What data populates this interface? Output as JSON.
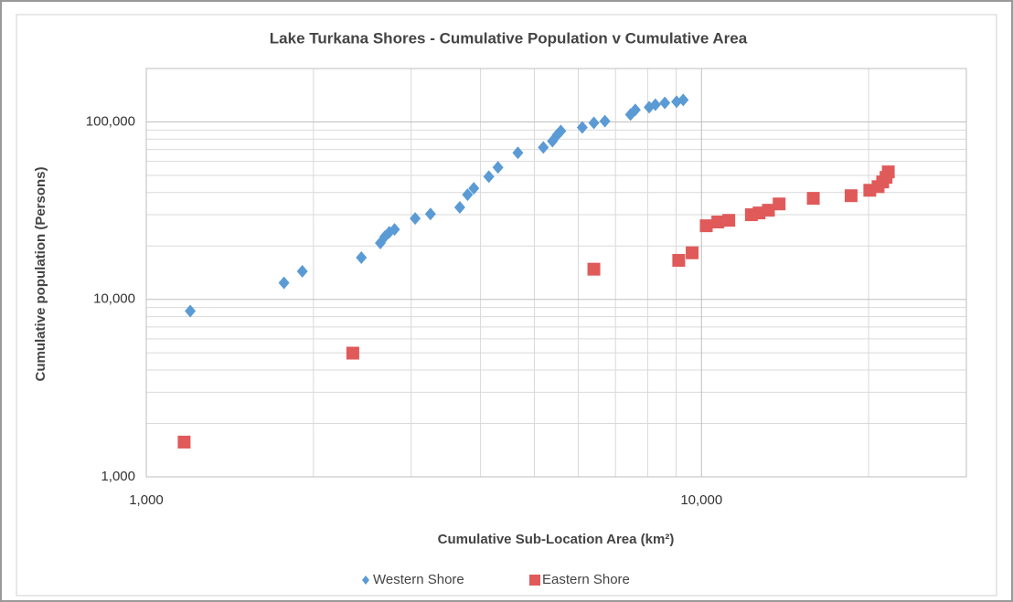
{
  "chart_data": {
    "type": "scatter",
    "title": "Lake Turkana Shores - Cumulative Population v Cumulative Area",
    "x_label": "Cumulative Sub-Location Area (km²)",
    "y_label": "Cumulative population (Persons)",
    "xlog": true,
    "ylog": true,
    "grid": true,
    "legend": "bottom",
    "xlim": [
      1000,
      30000
    ],
    "ylim": [
      1000,
      200000
    ],
    "xticks": [
      {
        "value": 1000,
        "label": "1,000"
      },
      {
        "value": 10000,
        "label": "10,000"
      }
    ],
    "yticks": [
      {
        "value": 1000,
        "label": "1,000"
      },
      {
        "value": 10000,
        "label": "10,000"
      },
      {
        "value": 100000,
        "label": "100,000"
      }
    ],
    "xminor": [
      2000,
      3000,
      4000,
      5000,
      6000,
      7000,
      8000,
      9000,
      20000
    ],
    "yminor": [
      2000,
      3000,
      4000,
      5000,
      6000,
      7000,
      8000,
      9000,
      20000,
      30000,
      40000,
      50000,
      60000,
      70000,
      80000,
      90000
    ],
    "series": [
      {
        "name": "Western Shore",
        "color": "#5b9bd5",
        "marker": "diamond",
        "x": [
          1200,
          1770,
          1910,
          2440,
          2640,
          2690,
          2740,
          2800,
          3050,
          3250,
          3670,
          3790,
          3890,
          4140,
          4300,
          4670,
          5190,
          5390,
          5500,
          5580,
          6100,
          6400,
          6700,
          7450,
          7600,
          8050,
          8260,
          8590,
          9020,
          9270
        ],
        "values": [
          8600,
          12400,
          14400,
          17200,
          20800,
          22600,
          23900,
          24800,
          28600,
          30300,
          33000,
          38900,
          42300,
          49200,
          55400,
          67000,
          71800,
          78000,
          84700,
          88900,
          93100,
          98800,
          101000,
          110000,
          117000,
          121000,
          125000,
          128000,
          130000,
          133000
        ]
      },
      {
        "name": "Eastern Shore",
        "color": "#e05a5a",
        "marker": "square",
        "x": [
          1170,
          2355,
          6400,
          9100,
          9620,
          10200,
          10700,
          11200,
          12300,
          12700,
          13200,
          13800,
          15900,
          18600,
          20100,
          20800,
          21200,
          21500,
          21700
        ],
        "values": [
          1570,
          4980,
          14800,
          16600,
          18300,
          26000,
          27300,
          27900,
          30000,
          30700,
          31800,
          34500,
          37100,
          38400,
          41200,
          43200,
          45900,
          48700,
          52300
        ]
      }
    ]
  }
}
